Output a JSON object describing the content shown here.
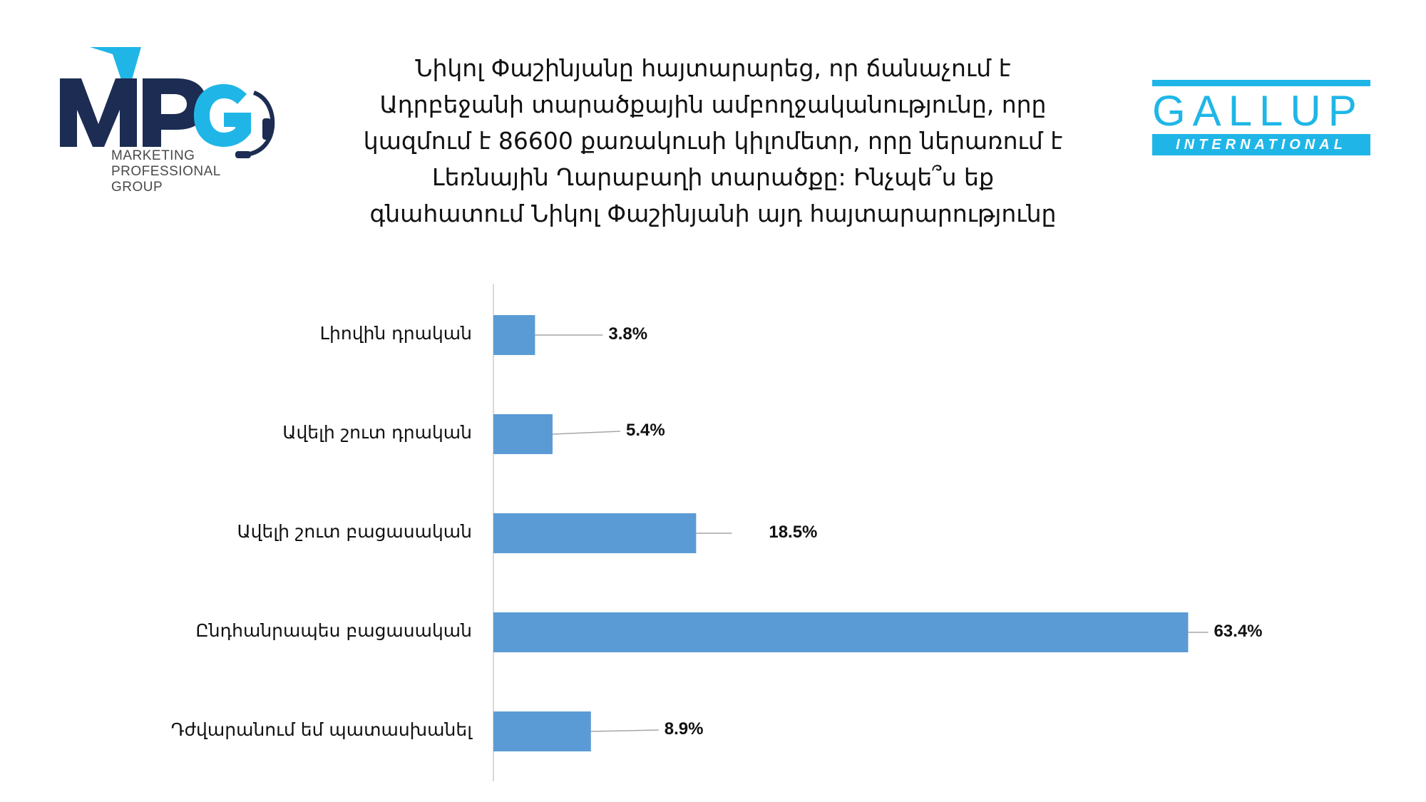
{
  "logos": {
    "mpg": {
      "letters": "MPG",
      "tagline": [
        "MARKETING",
        "PROFESSIONAL",
        "GROUP"
      ],
      "colors": {
        "navy": "#1c2c52",
        "cyan": "#1fb6e7"
      }
    },
    "gallup": {
      "word": "GALLUP",
      "sub": "INTERNATIONAL",
      "color": "#1fb6e7"
    }
  },
  "chart_data": {
    "type": "bar",
    "orientation": "horizontal",
    "title": "Նիկոլ Փաշինյանը հայտարարեց, որ ճանաչում է Ադրբեջանի տարածքային ամբողջականությունը, որը կազմում է 86600 քառակուսի կիլոմետր, որը ներառում է Լեռնային Ղարաբաղի տարածքը: Ինչպե՞ս եք գնահատում Նիկոլ Փաշինյանի այդ հայտարարությունը",
    "title_lines": [
      "Նիկոլ Փաշինյանը հայտարարեց, որ ճանաչում է",
      "Ադրբեջանի տարածքային ամբողջականությունը, որը",
      "կազմում է 86600 քառակուսի կիլոմետր, որը ներառում է",
      "Լեռնային Ղարաբաղի տարածքը: Ինչպե՞ս եք",
      "գնահատում Նիկոլ Փաշինյանի այդ հայտարարությունը"
    ],
    "categories": [
      "Լիովին դրական",
      "Ավելի շուտ դրական",
      "Ավելի շուտ բացասական",
      "Ընդհանրապես բացասական",
      "Դժվարանում եմ պատասխանել"
    ],
    "values": [
      3.8,
      5.4,
      18.5,
      63.4,
      8.9
    ],
    "value_labels": [
      "3.8%",
      "5.4%",
      "18.5%",
      "63.4%",
      "8.9%"
    ],
    "unit": "%",
    "xlim": [
      0,
      70
    ],
    "grid": false,
    "legend": "none",
    "bar_color": "#5b9bd5",
    "leader_color": "#a6a6a6",
    "axis_color": "#d9d9d9"
  }
}
